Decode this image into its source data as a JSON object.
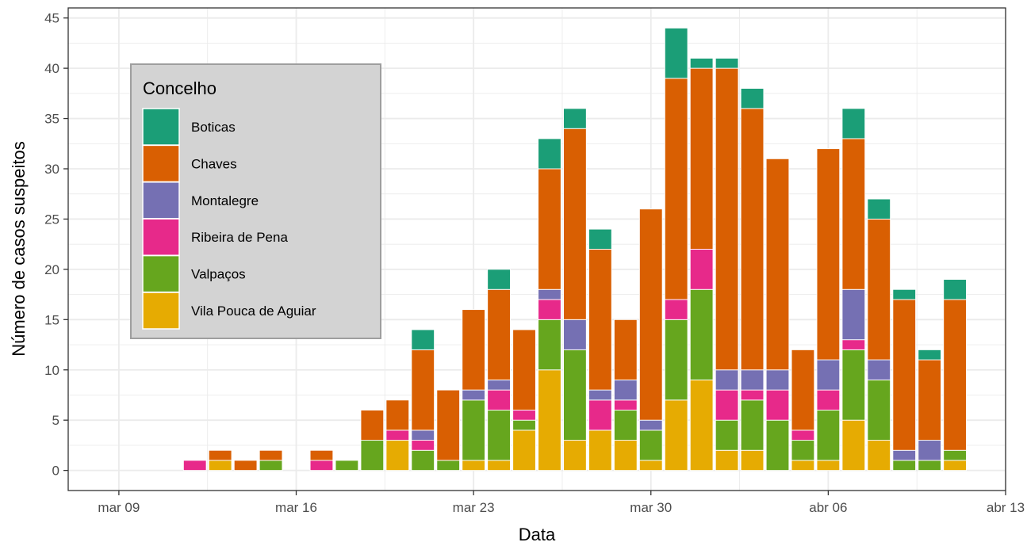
{
  "chart_data": {
    "type": "bar",
    "stacked": true,
    "xlabel": "Data",
    "ylabel": "Número de casos suspeitos",
    "ylim": [
      -2,
      46
    ],
    "yticks": [
      0,
      5,
      10,
      15,
      20,
      25,
      30,
      35,
      40,
      45
    ],
    "xlim": [
      "2020-03-07",
      "2020-04-13"
    ],
    "xticks": [
      {
        "date": "2020-03-09",
        "label": "mar 09"
      },
      {
        "date": "2020-03-16",
        "label": "mar 16"
      },
      {
        "date": "2020-03-23",
        "label": "mar 23"
      },
      {
        "date": "2020-03-30",
        "label": "mar 30"
      },
      {
        "date": "2020-04-06",
        "label": "abr 06"
      },
      {
        "date": "2020-04-13",
        "label": "abr 13"
      }
    ],
    "grid": true,
    "legend": {
      "title": "Concelho",
      "position": "top-left inside"
    },
    "dates": [
      "2020-03-09",
      "2020-03-10",
      "2020-03-11",
      "2020-03-12",
      "2020-03-13",
      "2020-03-14",
      "2020-03-15",
      "2020-03-16",
      "2020-03-17",
      "2020-03-18",
      "2020-03-19",
      "2020-03-20",
      "2020-03-21",
      "2020-03-22",
      "2020-03-23",
      "2020-03-24",
      "2020-03-25",
      "2020-03-26",
      "2020-03-27",
      "2020-03-28",
      "2020-03-29",
      "2020-03-30",
      "2020-03-31",
      "2020-04-01",
      "2020-04-02",
      "2020-04-03",
      "2020-04-04",
      "2020-04-05",
      "2020-04-06",
      "2020-04-07",
      "2020-04-08",
      "2020-04-09",
      "2020-04-10",
      "2020-04-11"
    ],
    "series": [
      {
        "name": "Vila Pouca de Aguiar",
        "color": "#e6ab02",
        "values": [
          0,
          0,
          0,
          0,
          1,
          0,
          0,
          0,
          0,
          0,
          0,
          3,
          0,
          0,
          1,
          1,
          4,
          10,
          3,
          4,
          3,
          1,
          7,
          9,
          2,
          2,
          0,
          1,
          1,
          5,
          3,
          0,
          0,
          1
        ]
      },
      {
        "name": "Valpaços",
        "color": "#66a61e",
        "values": [
          0,
          0,
          0,
          0,
          0,
          0,
          1,
          0,
          0,
          1,
          3,
          0,
          2,
          1,
          6,
          5,
          1,
          5,
          9,
          0,
          3,
          3,
          8,
          9,
          3,
          5,
          5,
          2,
          5,
          7,
          6,
          1,
          1,
          1
        ]
      },
      {
        "name": "Ribeira de Pena",
        "color": "#e7298a",
        "values": [
          0,
          0,
          0,
          1,
          0,
          0,
          0,
          0,
          1,
          0,
          0,
          1,
          1,
          0,
          0,
          2,
          1,
          2,
          0,
          3,
          1,
          0,
          2,
          4,
          3,
          1,
          3,
          1,
          2,
          1,
          0,
          0,
          0,
          0
        ]
      },
      {
        "name": "Montalegre",
        "color": "#7570b3",
        "values": [
          0,
          0,
          0,
          0,
          0,
          0,
          0,
          0,
          0,
          0,
          0,
          0,
          1,
          0,
          1,
          1,
          0,
          1,
          3,
          1,
          2,
          1,
          0,
          0,
          2,
          2,
          2,
          0,
          3,
          5,
          2,
          1,
          2,
          0
        ]
      },
      {
        "name": "Chaves",
        "color": "#d95f02",
        "values": [
          0,
          0,
          0,
          0,
          1,
          1,
          1,
          0,
          1,
          0,
          3,
          3,
          8,
          7,
          8,
          9,
          8,
          12,
          19,
          14,
          6,
          21,
          22,
          18,
          30,
          26,
          21,
          8,
          21,
          15,
          14,
          15,
          8,
          15
        ]
      },
      {
        "name": "Boticas",
        "color": "#1b9e77",
        "values": [
          0,
          0,
          0,
          0,
          0,
          0,
          0,
          0,
          0,
          0,
          0,
          0,
          2,
          0,
          0,
          2,
          0,
          3,
          2,
          2,
          0,
          0,
          5,
          1,
          1,
          2,
          0,
          0,
          0,
          3,
          2,
          1,
          1,
          2
        ]
      }
    ]
  }
}
